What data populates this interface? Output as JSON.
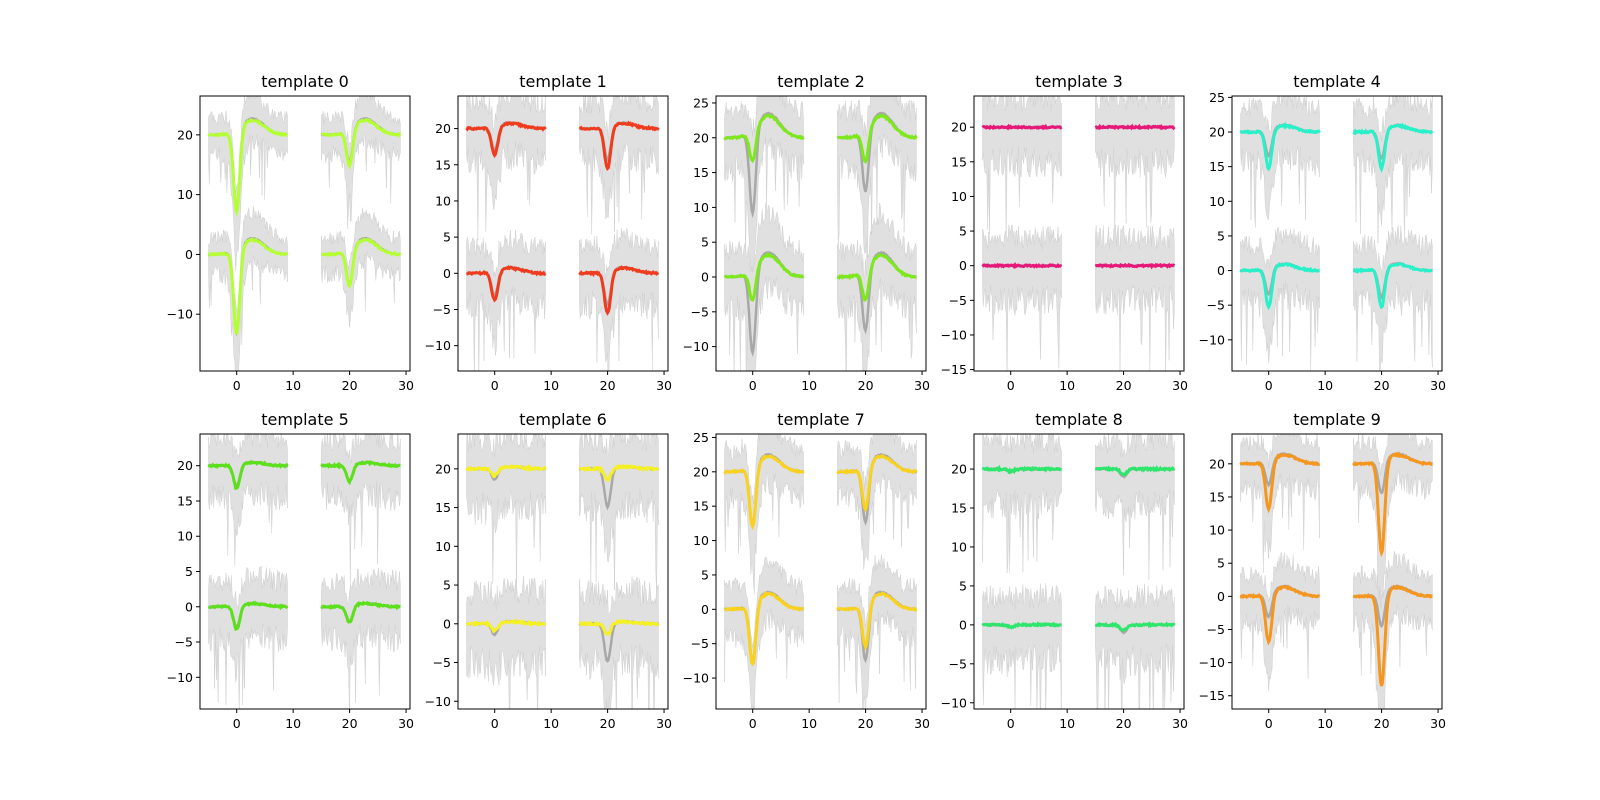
{
  "figure": {
    "panels": [
      {
        "title": "template 0",
        "color": "#b3ff33",
        "ylim": [
          -19.5,
          26.5
        ],
        "yticks": [
          -10,
          0,
          10,
          20
        ],
        "dips": [
          [
            -13.5,
            -13.8
          ],
          [
            -5.5,
            -6.0
          ],
          [
            -14.0,
            -14.2
          ],
          [
            -6.0,
            -6.2
          ]
        ],
        "over": 2.7,
        "band": 3.0
      },
      {
        "title": "template 1",
        "color": "#f03c1e",
        "ylim": [
          -13.5,
          24.5
        ],
        "yticks": [
          -10,
          -5,
          0,
          5,
          10,
          15,
          20
        ],
        "dips": [
          [
            -3.3,
            -4.0
          ],
          [
            -4.6,
            -5.8
          ],
          [
            -3.3,
            -4.0
          ],
          [
            -4.6,
            -5.8
          ]
        ],
        "over": 0.8,
        "band": 4.0
      },
      {
        "title": "template 2",
        "color": "#7de81c",
        "ylim": [
          -13.5,
          26.0
        ],
        "yticks": [
          -10,
          -5,
          0,
          5,
          10,
          15,
          20,
          25
        ],
        "dips": [
          [
            -12.2,
            -4.5
          ],
          [
            -9.0,
            -4.5
          ],
          [
            -12.2,
            -4.5
          ],
          [
            -9.0,
            -4.5
          ]
        ],
        "over": 3.5,
        "band": 4.0
      },
      {
        "title": "template 3",
        "color": "#e6197a",
        "ylim": [
          -15.2,
          24.5
        ],
        "yticks": [
          -15,
          -10,
          -5,
          0,
          5,
          10,
          15,
          20
        ],
        "dips": [
          [
            0,
            0
          ],
          [
            0,
            0
          ],
          [
            0,
            0
          ],
          [
            0,
            0
          ]
        ],
        "over": 0.0,
        "band": 4.5
      },
      {
        "title": "template 4",
        "color": "#28f0c8",
        "ylim": [
          -14.5,
          25.2
        ],
        "yticks": [
          -10,
          -5,
          0,
          5,
          10,
          15,
          20,
          25
        ],
        "dips": [
          [
            -3.8,
            -5.6
          ],
          [
            -4.2,
            -5.6
          ],
          [
            -3.8,
            -5.6
          ],
          [
            -4.2,
            -5.6
          ]
        ],
        "over": 1.0,
        "band": 4.0
      },
      {
        "title": "template 5",
        "color": "#5de01c",
        "ylim": [
          -14.5,
          24.5
        ],
        "yticks": [
          -10,
          -5,
          0,
          5,
          10,
          15,
          20
        ],
        "dips": [
          [
            -3.0,
            -3.4
          ],
          [
            -2.3,
            -2.4
          ],
          [
            -3.0,
            -3.4
          ],
          [
            -2.3,
            -2.4
          ]
        ],
        "over": 0.5,
        "band": 4.0
      },
      {
        "title": "template 6",
        "color": "#f5f024",
        "ylim": [
          -11.0,
          24.5
        ],
        "yticks": [
          -10,
          -5,
          0,
          5,
          10,
          15,
          20
        ],
        "dips": [
          [
            -1.5,
            -1.0
          ],
          [
            -5.0,
            -1.5
          ],
          [
            -1.5,
            -1.0
          ],
          [
            -5.0,
            -1.5
          ]
        ],
        "over": 0.3,
        "band": 4.5
      },
      {
        "title": "template 7",
        "color": "#f8d21e",
        "ylim": [
          -14.5,
          25.5
        ],
        "yticks": [
          -10,
          -5,
          0,
          5,
          10,
          15,
          20,
          25
        ],
        "dips": [
          [
            -8.8,
            -8.9
          ],
          [
            -8.3,
            -6.3
          ],
          [
            -8.8,
            -8.9
          ],
          [
            -8.3,
            -6.3
          ]
        ],
        "over": 2.5,
        "band": 3.5
      },
      {
        "title": "template 8",
        "color": "#2ee66b",
        "ylim": [
          -10.8,
          24.5
        ],
        "yticks": [
          -10,
          -5,
          0,
          5,
          10,
          15,
          20
        ],
        "dips": [
          [
            -0.3,
            -0.3
          ],
          [
            -1.0,
            -0.7
          ],
          [
            -0.3,
            -0.3
          ],
          [
            -1.0,
            -0.7
          ]
        ],
        "over": 0.0,
        "band": 4.0
      },
      {
        "title": "template 9",
        "color": "#f5961e",
        "ylim": [
          -17.0,
          24.5
        ],
        "yticks": [
          -15,
          -10,
          -5,
          0,
          5,
          10,
          15,
          20
        ],
        "dips": [
          [
            -3.7,
            -7.3
          ],
          [
            -5.0,
            -14.0
          ],
          [
            -3.7,
            -7.3
          ],
          [
            -5.0,
            -14.0
          ]
        ],
        "over": 1.5,
        "band": 3.5
      }
    ],
    "xticks": [
      0,
      10,
      20,
      30
    ],
    "xlim": [
      -6.5,
      30.7
    ],
    "baselines": [
      20,
      0
    ],
    "gray": "#a8a8a8",
    "band_color": "#e0e0e0"
  }
}
